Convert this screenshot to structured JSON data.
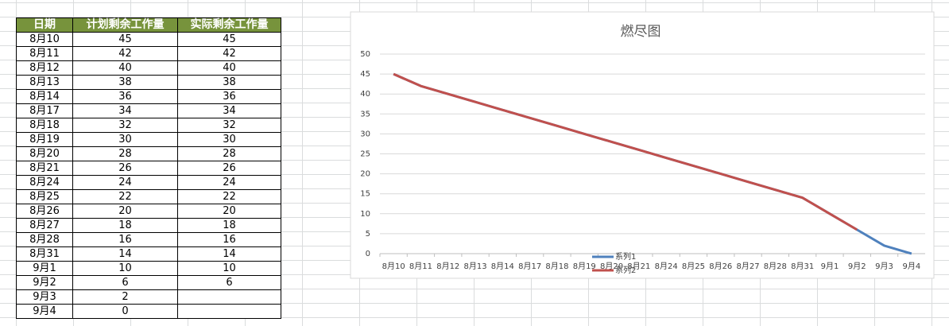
{
  "table": {
    "header": [
      "日期",
      "计划剩余工作量",
      "实际剩余工作量"
    ],
    "rows": [
      [
        "8月10",
        45,
        45
      ],
      [
        "8月11",
        42,
        42
      ],
      [
        "8月12",
        40,
        40
      ],
      [
        "8月13",
        38,
        38
      ],
      [
        "8月14",
        36,
        36
      ],
      [
        "8月17",
        34,
        34
      ],
      [
        "8月18",
        32,
        32
      ],
      [
        "8月19",
        30,
        30
      ],
      [
        "8月20",
        28,
        28
      ],
      [
        "8月21",
        26,
        26
      ],
      [
        "8月24",
        24,
        24
      ],
      [
        "8月25",
        22,
        22
      ],
      [
        "8月26",
        20,
        20
      ],
      [
        "8月27",
        18,
        18
      ],
      [
        "8月28",
        16,
        16
      ],
      [
        "8月31",
        14,
        14
      ],
      [
        "9月1",
        10,
        10
      ],
      [
        "9月2",
        6,
        6
      ],
      [
        "9月3",
        2,
        null
      ],
      [
        "9月4",
        0,
        null
      ]
    ]
  },
  "chart_data": {
    "type": "line",
    "title": "燃尽图",
    "categories": [
      "8月10",
      "8月11",
      "8月12",
      "8月13",
      "8月14",
      "8月17",
      "8月18",
      "8月19",
      "8月20",
      "8月21",
      "8月24",
      "8月25",
      "8月26",
      "8月27",
      "8月28",
      "8月31",
      "9月1",
      "9月2",
      "9月3",
      "9月4"
    ],
    "series": [
      {
        "name": "系列1",
        "color": "#4f81bd",
        "values": [
          45,
          42,
          40,
          38,
          36,
          34,
          32,
          30,
          28,
          26,
          24,
          22,
          20,
          18,
          16,
          14,
          10,
          6,
          2,
          0
        ]
      },
      {
        "name": "系列2",
        "color": "#c0504d",
        "values": [
          45,
          42,
          40,
          38,
          36,
          34,
          32,
          30,
          28,
          26,
          24,
          22,
          20,
          18,
          16,
          14,
          10,
          6,
          null,
          null
        ]
      }
    ],
    "ylim": [
      0,
      50
    ],
    "yticks": [
      0,
      5,
      10,
      15,
      20,
      25,
      30,
      35,
      40,
      45,
      50
    ],
    "grid": true
  }
}
